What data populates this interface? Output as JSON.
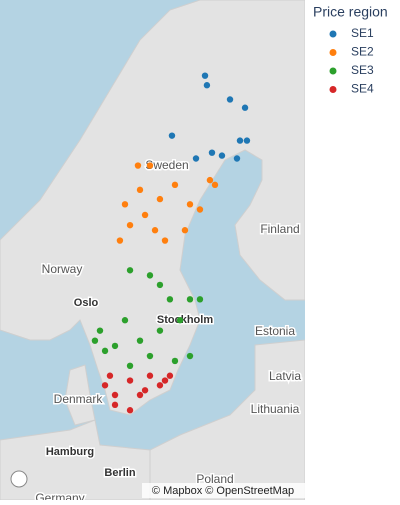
{
  "chart_data": {
    "type": "scatter_map",
    "legend_title": "Price region",
    "xlim": [
      4.53,
      26.86
    ],
    "ylim": [
      51.97,
      69.35
    ],
    "series": [
      {
        "name": "SE1",
        "color": "#1f77b4",
        "x": [
          19.54,
          19.68,
          21.37,
          22.47,
          22.1,
          20.05,
          18.88,
          17.12,
          21.88,
          20.78,
          22.61
        ],
        "y": [
          67.31,
          67.04,
          66.63,
          66.39,
          65.41,
          65.04,
          64.86,
          65.56,
          64.86,
          64.95,
          65.41
        ]
      },
      {
        "name": "SE2",
        "color": "#ff7f0e",
        "x": [
          15.51,
          14.78,
          13.68,
          16.24,
          17.34,
          19.17,
          18.07,
          14.05,
          16.61,
          15.15,
          19.9,
          18.44,
          13.31,
          15.88,
          20.27,
          14.63
        ],
        "y": [
          64.64,
          63.87,
          63.4,
          63.57,
          64.03,
          63.23,
          62.54,
          62.71,
          62.19,
          63.05,
          64.18,
          63.4,
          62.19,
          62.54,
          64.03,
          64.64
        ]
      },
      {
        "name": "SE3",
        "color": "#2ca02c",
        "x": [
          14.05,
          15.51,
          16.97,
          18.44,
          17.71,
          11.85,
          12.95,
          14.78,
          16.24,
          13.68,
          12.22,
          15.51,
          17.34,
          18.44,
          14.05,
          16.24,
          19.17,
          11.48
        ],
        "y": [
          61.16,
          60.98,
          60.12,
          60.12,
          59.35,
          58.96,
          58.38,
          58.58,
          58.96,
          59.35,
          58.19,
          57.99,
          57.8,
          57.99,
          57.61,
          60.64,
          60.12,
          58.58
        ]
      },
      {
        "name": "SE4",
        "color": "#d62728",
        "x": [
          12.58,
          14.05,
          15.51,
          16.97,
          12.95,
          14.78,
          16.24,
          12.95,
          14.05,
          16.61,
          15.15,
          12.22
        ],
        "y": [
          57.22,
          57.03,
          57.22,
          57.22,
          56.45,
          56.45,
          56.84,
          56.05,
          55.83,
          57.03,
          56.64,
          56.84
        ]
      }
    ],
    "place_labels": [
      "Sweden",
      "Finland",
      "Norway",
      "Oslo",
      "Stockholm",
      "Estonia",
      "Latvia",
      "Denmark",
      "Lithuania",
      "Hamburg",
      "Berlin",
      "Poland",
      "Germany"
    ],
    "attribution": "© Mapbox © OpenStreetMap"
  }
}
